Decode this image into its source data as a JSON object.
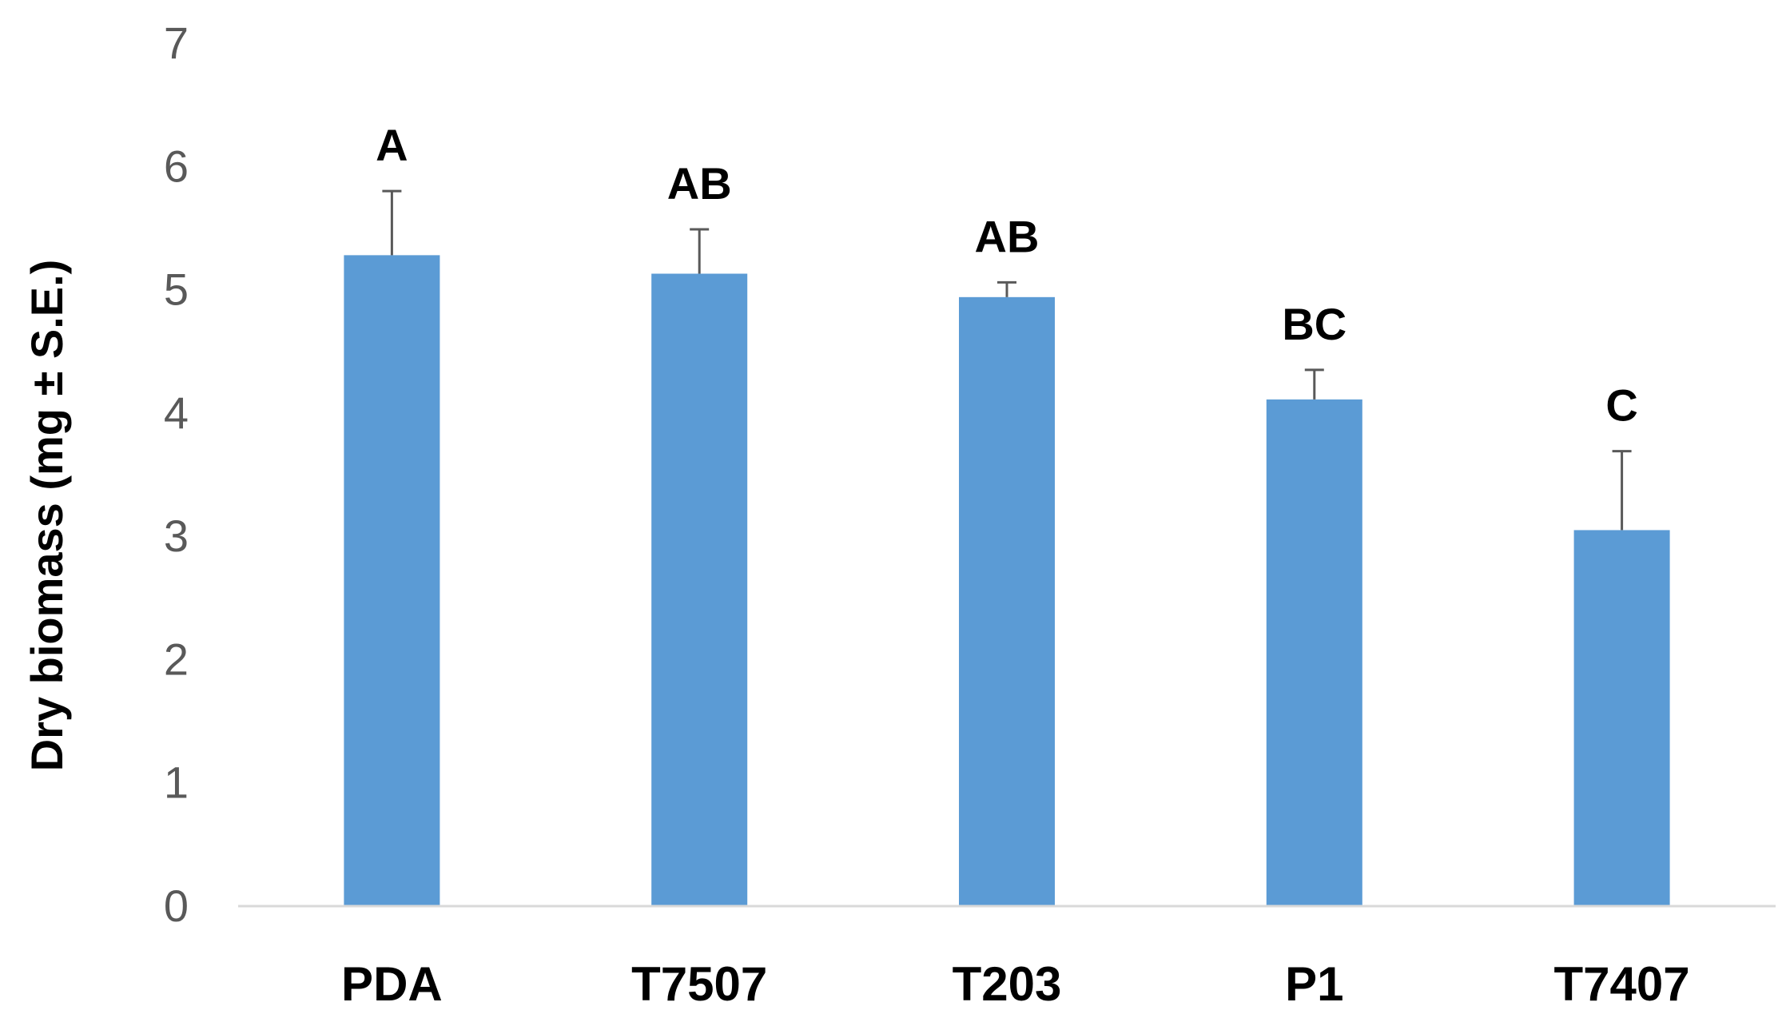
{
  "chart_data": {
    "type": "bar",
    "title": "",
    "xlabel": "",
    "ylabel": "Dry biomass (mg ± S.E.)",
    "ylim": [
      0,
      7
    ],
    "yticks": [
      0,
      1,
      2,
      3,
      4,
      5,
      6,
      7
    ],
    "grid": false,
    "categories": [
      "PDA",
      "T7507",
      "T203",
      "P1",
      "T7407"
    ],
    "values": [
      5.28,
      5.13,
      4.94,
      4.11,
      3.05
    ],
    "error_bars": [
      0.52,
      0.36,
      0.12,
      0.24,
      0.64
    ],
    "annotations": [
      "A",
      "AB",
      "AB",
      "BC",
      "C"
    ],
    "bar_color": "#5b9bd5",
    "errorbar_color": "#595959",
    "axis_color": "#d9d9d9"
  }
}
